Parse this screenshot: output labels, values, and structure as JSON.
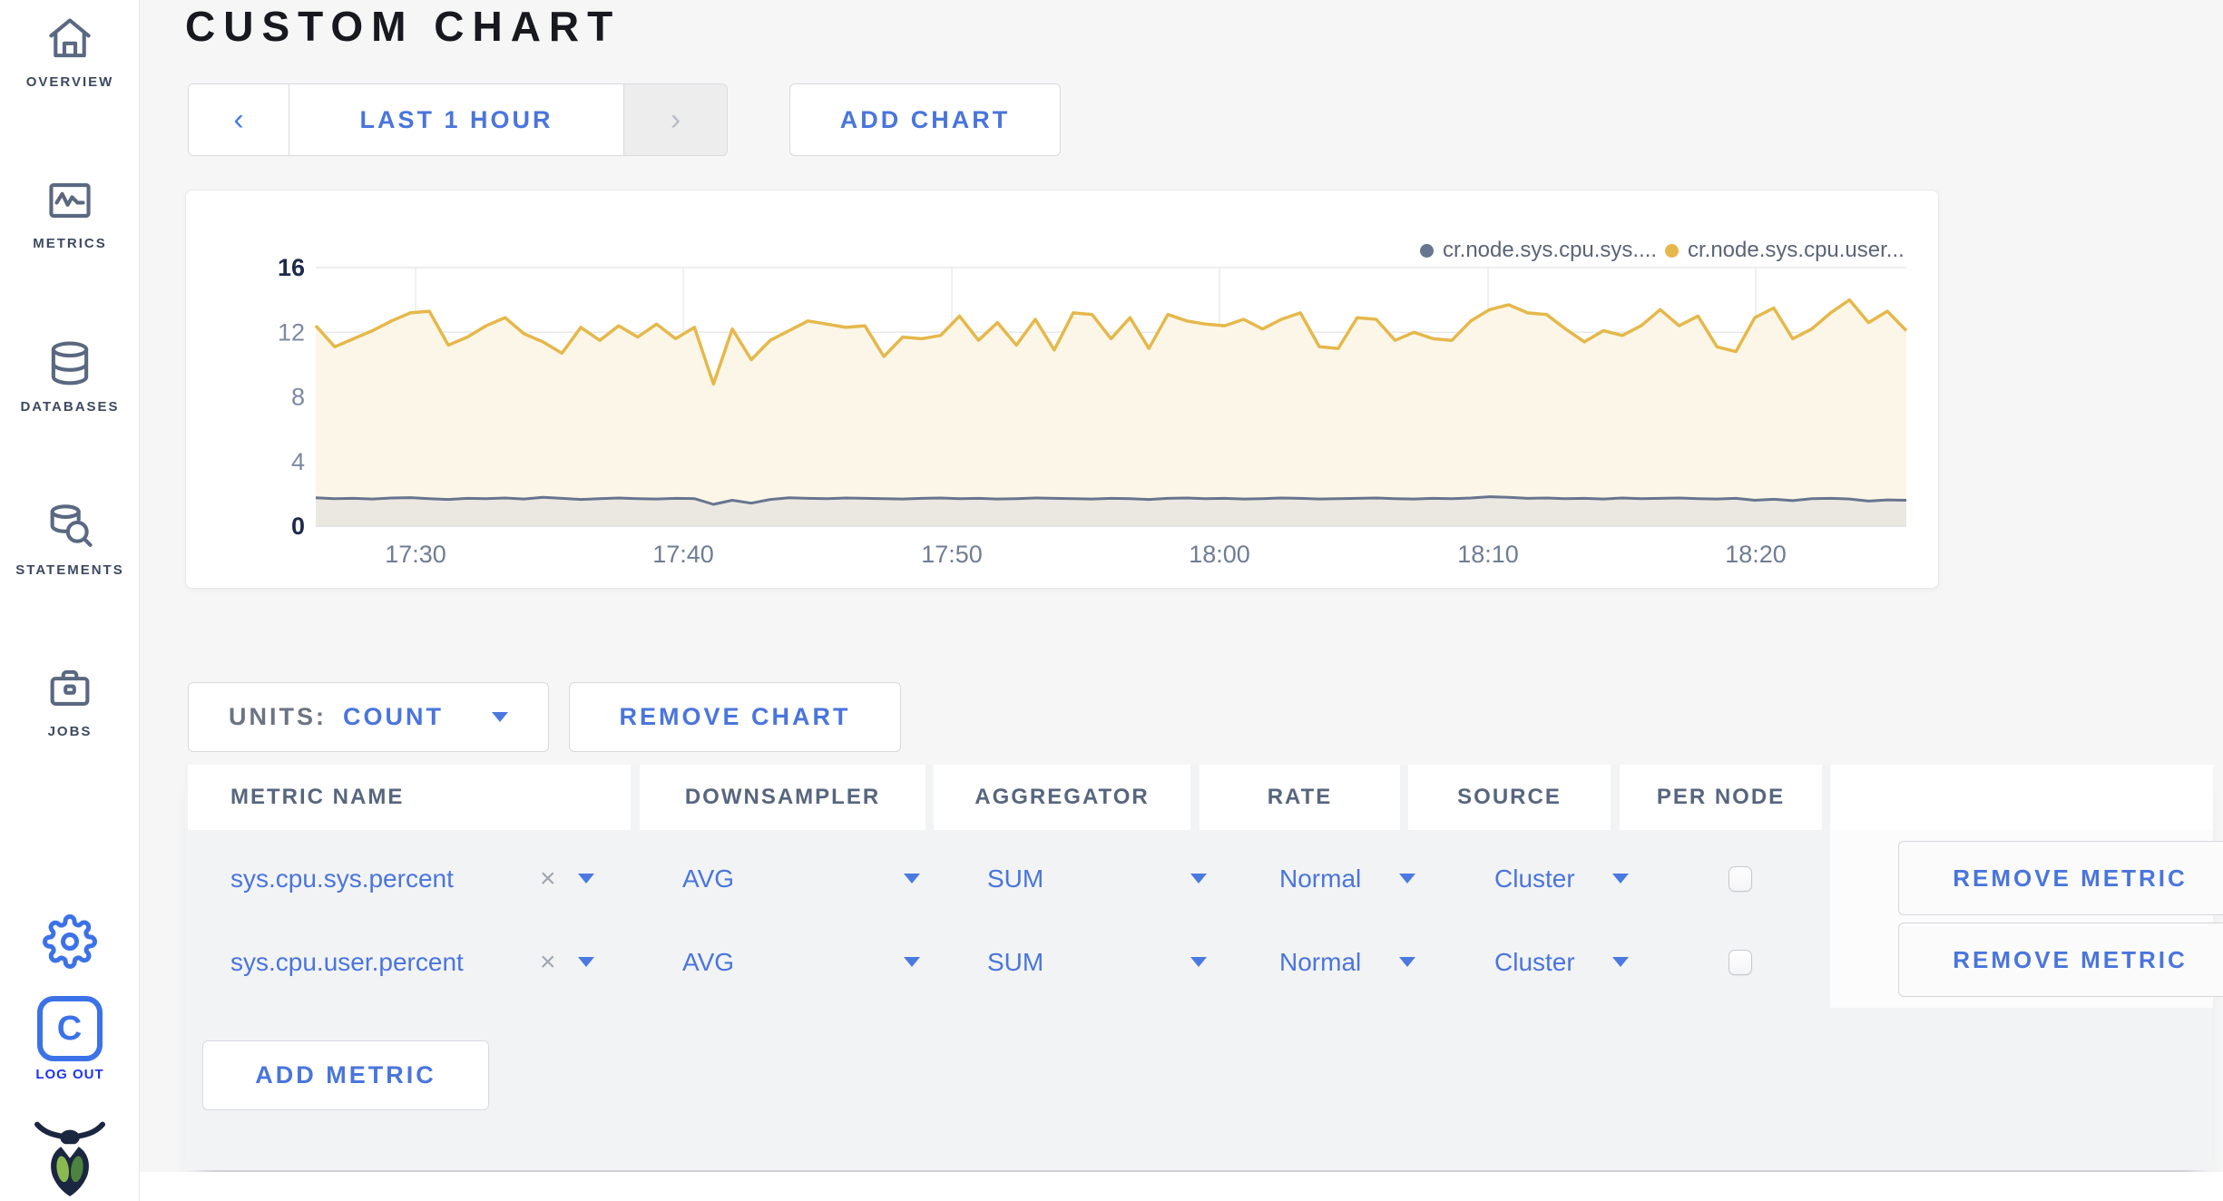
{
  "sidebar": {
    "items": [
      {
        "label": "OVERVIEW"
      },
      {
        "label": "METRICS"
      },
      {
        "label": "DATABASES"
      },
      {
        "label": "STATEMENTS"
      },
      {
        "label": "JOBS"
      }
    ],
    "logo_letter": "C",
    "logout_label": "LOG OUT"
  },
  "header": {
    "title": "CUSTOM CHART",
    "time_window": {
      "prev": "‹",
      "label": "LAST 1 HOUR",
      "next": "›"
    },
    "add_chart_label": "ADD CHART"
  },
  "chart_data": {
    "type": "line",
    "title": "",
    "ylim": [
      0,
      16
    ],
    "y_ticks": [
      0,
      4,
      8,
      12,
      16
    ],
    "x_ticks": [
      "17:30",
      "17:40",
      "17:50",
      "18:00",
      "18:10",
      "18:20"
    ],
    "x_range": [
      "17:26",
      "18:26"
    ],
    "grid": true,
    "legend_position": "top-right",
    "series": [
      {
        "name": "cr.node.sys.cpu.sys....",
        "color": "#67758f",
        "fill": "#ebe8e1",
        "values": [
          1.75,
          1.7,
          1.72,
          1.68,
          1.74,
          1.76,
          1.7,
          1.65,
          1.72,
          1.7,
          1.74,
          1.68,
          1.78,
          1.72,
          1.65,
          1.7,
          1.74,
          1.7,
          1.68,
          1.72,
          1.7,
          1.35,
          1.6,
          1.42,
          1.65,
          1.75,
          1.72,
          1.7,
          1.74,
          1.72,
          1.7,
          1.68,
          1.72,
          1.74,
          1.7,
          1.72,
          1.68,
          1.7,
          1.74,
          1.72,
          1.7,
          1.68,
          1.72,
          1.7,
          1.65,
          1.72,
          1.74,
          1.7,
          1.72,
          1.68,
          1.7,
          1.74,
          1.72,
          1.68,
          1.7,
          1.72,
          1.74,
          1.7,
          1.68,
          1.72,
          1.7,
          1.74,
          1.82,
          1.78,
          1.72,
          1.74,
          1.7,
          1.72,
          1.68,
          1.74,
          1.7,
          1.72,
          1.74,
          1.7,
          1.68,
          1.72,
          1.6,
          1.66,
          1.58,
          1.7,
          1.72,
          1.68,
          1.55,
          1.62,
          1.6
        ]
      },
      {
        "name": "cr.node.sys.cpu.user...",
        "color": "#e5b84b",
        "fill": "#fbf6e7",
        "values": [
          12.4,
          11.1,
          11.6,
          12.1,
          12.7,
          13.2,
          13.3,
          11.2,
          11.7,
          12.4,
          12.9,
          11.9,
          11.4,
          10.7,
          12.3,
          11.5,
          12.4,
          11.7,
          12.5,
          11.6,
          12.3,
          8.8,
          12.2,
          10.3,
          11.5,
          12.1,
          12.7,
          12.5,
          12.3,
          12.4,
          10.5,
          11.7,
          11.6,
          11.8,
          13.0,
          11.5,
          12.6,
          11.2,
          12.8,
          10.9,
          13.2,
          13.1,
          11.6,
          12.9,
          11.0,
          13.1,
          12.7,
          12.5,
          12.4,
          12.8,
          12.2,
          12.8,
          13.2,
          11.1,
          11.0,
          12.9,
          12.8,
          11.5,
          12.0,
          11.6,
          11.5,
          12.7,
          13.4,
          13.7,
          13.2,
          13.1,
          12.2,
          11.4,
          12.1,
          11.8,
          12.4,
          13.4,
          12.4,
          13.0,
          11.1,
          10.8,
          12.9,
          13.5,
          11.6,
          12.2,
          13.2,
          14.0,
          12.6,
          13.3,
          12.1
        ]
      }
    ]
  },
  "chart_controls": {
    "units_label": "UNITS:",
    "units_value": "COUNT",
    "remove_chart_label": "REMOVE CHART",
    "add_metric_label": "ADD METRIC",
    "remove_metric_label": "REMOVE METRIC"
  },
  "metrics_table": {
    "columns": [
      "METRIC NAME",
      "DOWNSAMPLER",
      "AGGREGATOR",
      "RATE",
      "SOURCE",
      "PER NODE"
    ],
    "rows": [
      {
        "metric": "sys.cpu.sys.percent",
        "clear": "×",
        "downsampler": "AVG",
        "aggregator": "SUM",
        "rate": "Normal",
        "source": "Cluster",
        "per_node_checked": false
      },
      {
        "metric": "sys.cpu.user.percent",
        "clear": "×",
        "downsampler": "AVG",
        "aggregator": "SUM",
        "rate": "Normal",
        "source": "Cluster",
        "per_node_checked": false
      }
    ]
  }
}
